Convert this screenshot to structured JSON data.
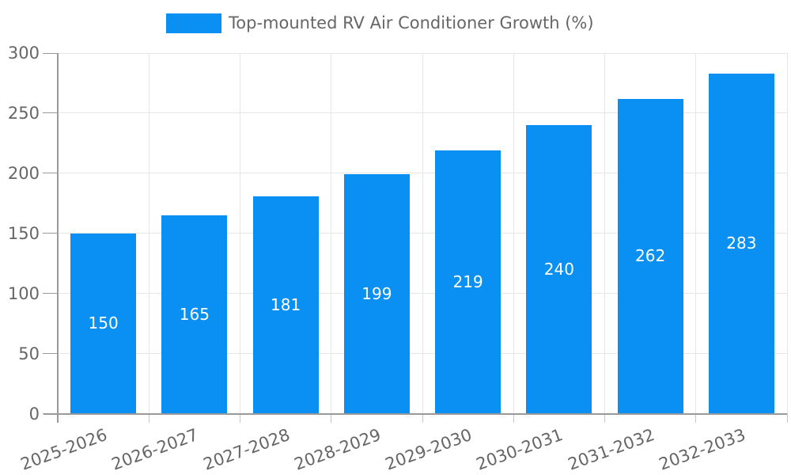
{
  "chart_data": {
    "type": "bar",
    "title": "Top-mounted RV Air Conditioner Growth (%)",
    "categories": [
      "2025-2026",
      "2026-2027",
      "2027-2028",
      "2028-2029",
      "2029-2030",
      "2030-2031",
      "2031-2032",
      "2032-2033"
    ],
    "values": [
      150,
      165,
      181,
      199,
      219,
      240,
      262,
      283
    ],
    "series": [
      {
        "name": "Top-mounted RV Air Conditioner Growth (%)",
        "values": [
          150,
          165,
          181,
          199,
          219,
          240,
          262,
          283
        ]
      }
    ],
    "xlabel": "",
    "ylabel": "",
    "ylim": [
      0,
      300
    ],
    "yticks": [
      0,
      50,
      100,
      150,
      200,
      250,
      300
    ],
    "grid": "both",
    "legend_position": "top",
    "value_labels": "inside-center",
    "colors": {
      "bar": "#0a90f2",
      "grid": "#e6e6e6",
      "axis": "#9a9a9a",
      "boundary_tick": "#c4c4c4",
      "tick_label": "#666666",
      "value_label": "#ffffff",
      "background": "#ffffff"
    }
  }
}
